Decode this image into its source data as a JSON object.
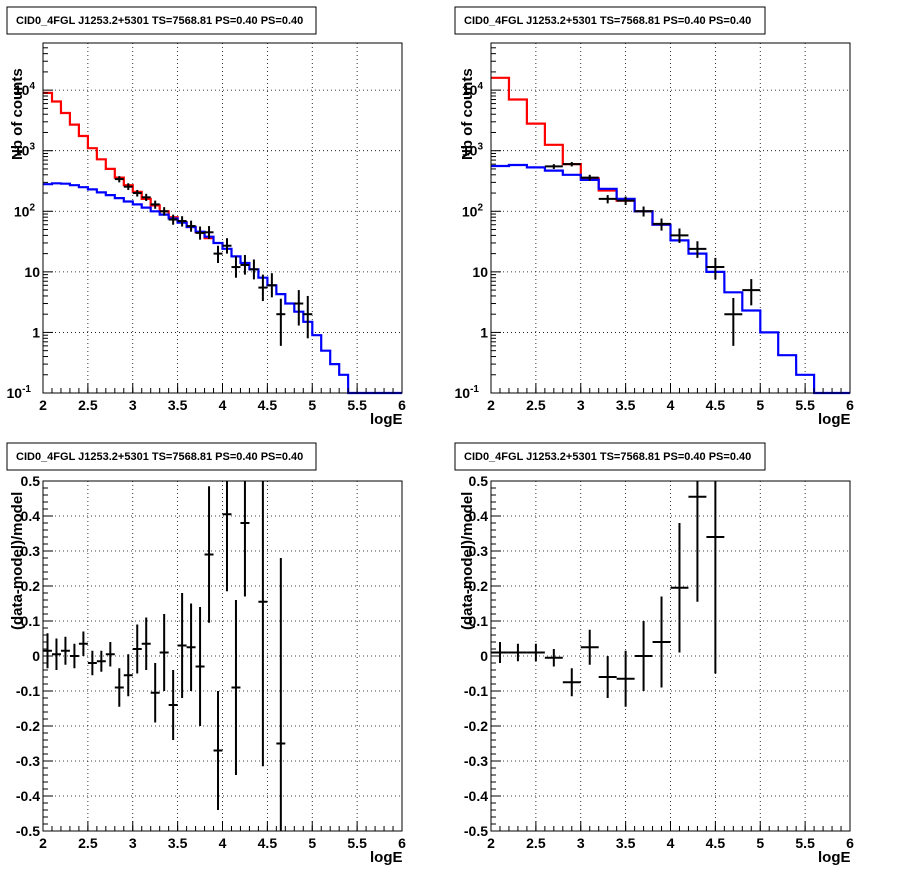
{
  "chart_data": [
    {
      "type": "line",
      "title": "CID0_4FGL J1253.2+5301 TS=7568.81 PS=0.40 PS=0.40",
      "xlabel": "logE",
      "ylabel": "Nb of counts",
      "xlim": [
        2,
        6
      ],
      "ylim": [
        0.1,
        60000
      ],
      "yscale": "log",
      "grid": true,
      "x_ticks": [
        "2",
        "2.5",
        "3",
        "3.5",
        "4",
        "4.5",
        "5",
        "5.5",
        "6"
      ],
      "y_ticks": [
        {
          "v": 0.1,
          "label": "10^-1"
        },
        {
          "v": 1,
          "label": "1"
        },
        {
          "v": 10,
          "label": "10"
        },
        {
          "v": 100,
          "label": "10^2"
        },
        {
          "v": 1000,
          "label": "10^3"
        },
        {
          "v": 10000,
          "label": "10^4"
        }
      ],
      "bin_width": 0.1,
      "series": [
        {
          "color": "#ff0000",
          "x": [
            2.05,
            2.15,
            2.25,
            2.35,
            2.45,
            2.55,
            2.65,
            2.75,
            2.85,
            2.95,
            3.05,
            3.15,
            3.25,
            3.35,
            3.45,
            3.55,
            3.65,
            3.75,
            3.85
          ],
          "values": [
            9000,
            6500,
            4200,
            2700,
            1750,
            1100,
            720,
            500,
            360,
            270,
            210,
            160,
            125,
            100,
            80,
            66,
            55,
            45,
            36
          ]
        },
        {
          "color": "#0000ff",
          "x": [
            2.05,
            2.15,
            2.25,
            2.35,
            2.45,
            2.55,
            2.65,
            2.75,
            2.85,
            2.95,
            3.05,
            3.15,
            3.25,
            3.35,
            3.45,
            3.55,
            3.65,
            3.75,
            3.85,
            3.95,
            4.05,
            4.15,
            4.25,
            4.35,
            4.45,
            4.55,
            4.65,
            4.75,
            4.85,
            4.95,
            5.05,
            5.15,
            5.25,
            5.35,
            5.45,
            5.55,
            5.65,
            5.75,
            5.85,
            5.95
          ],
          "values": [
            280,
            290,
            285,
            270,
            250,
            230,
            205,
            185,
            165,
            145,
            130,
            115,
            100,
            88,
            76,
            65,
            55,
            46,
            38,
            30,
            24,
            18,
            14,
            11,
            8,
            6,
            4.3,
            3,
            2.2,
            1.5,
            0.9,
            0.5,
            0.3,
            0.2,
            0.1,
            0.1,
            0.1,
            0.1,
            0.1,
            0.1
          ]
        }
      ],
      "points": [
        {
          "x": 2.85,
          "y": 340,
          "lo": 300,
          "hi": 380
        },
        {
          "x": 2.95,
          "y": 255,
          "lo": 225,
          "hi": 290
        },
        {
          "x": 3.05,
          "y": 200,
          "lo": 175,
          "hi": 225
        },
        {
          "x": 3.15,
          "y": 170,
          "lo": 148,
          "hi": 194
        },
        {
          "x": 3.25,
          "y": 130,
          "lo": 110,
          "hi": 150
        },
        {
          "x": 3.35,
          "y": 100,
          "lo": 85,
          "hi": 117
        },
        {
          "x": 3.45,
          "y": 73,
          "lo": 60,
          "hi": 88
        },
        {
          "x": 3.55,
          "y": 69,
          "lo": 56,
          "hi": 83
        },
        {
          "x": 3.65,
          "y": 57,
          "lo": 46,
          "hi": 70
        },
        {
          "x": 3.75,
          "y": 44,
          "lo": 34,
          "hi": 56
        },
        {
          "x": 3.85,
          "y": 45,
          "lo": 35,
          "hi": 57
        },
        {
          "x": 3.95,
          "y": 20,
          "lo": 14,
          "hi": 27
        },
        {
          "x": 4.05,
          "y": 27,
          "lo": 20,
          "hi": 36
        },
        {
          "x": 4.15,
          "y": 12,
          "lo": 8,
          "hi": 18
        },
        {
          "x": 4.25,
          "y": 13,
          "lo": 9,
          "hi": 19
        },
        {
          "x": 4.35,
          "y": 11,
          "lo": 7.5,
          "hi": 16
        },
        {
          "x": 4.45,
          "y": 5.5,
          "lo": 3.3,
          "hi": 9
        },
        {
          "x": 4.55,
          "y": 6,
          "lo": 3.8,
          "hi": 9.5
        },
        {
          "x": 4.65,
          "y": 2,
          "lo": 0.6,
          "hi": 3.6
        },
        {
          "x": 4.85,
          "y": 3,
          "lo": 1.3,
          "hi": 5
        },
        {
          "x": 4.95,
          "y": 2,
          "lo": 0.8,
          "hi": 4
        }
      ]
    },
    {
      "type": "line",
      "title": "CID0_4FGL J1253.2+5301 TS=7568.81 PS=0.40 PS=0.40",
      "xlabel": "logE",
      "ylabel": "Nb of counts",
      "xlim": [
        2,
        6
      ],
      "ylim": [
        0.1,
        60000
      ],
      "yscale": "log",
      "grid": true,
      "x_ticks": [
        "2",
        "2.5",
        "3",
        "3.5",
        "4",
        "4.5",
        "5",
        "5.5",
        "6"
      ],
      "y_ticks": [
        {
          "v": 0.1,
          "label": "10^-1"
        },
        {
          "v": 1,
          "label": "1"
        },
        {
          "v": 10,
          "label": "10"
        },
        {
          "v": 100,
          "label": "10^2"
        },
        {
          "v": 1000,
          "label": "10^3"
        },
        {
          "v": 10000,
          "label": "10^4"
        }
      ],
      "bin_width": 0.2,
      "series": [
        {
          "color": "#ff0000",
          "x": [
            2.1,
            2.3,
            2.5,
            2.7,
            2.9,
            3.1,
            3.3,
            3.5,
            3.7,
            3.9
          ],
          "values": [
            16000,
            7000,
            2800,
            1250,
            600,
            350,
            220,
            150,
            100,
            60
          ]
        },
        {
          "color": "#0000ff",
          "x": [
            2.1,
            2.3,
            2.5,
            2.7,
            2.9,
            3.1,
            3.3,
            3.5,
            3.7,
            3.9,
            4.1,
            4.3,
            4.5,
            4.7,
            4.9,
            5.1,
            5.3,
            5.5,
            5.7,
            5.9
          ],
          "values": [
            560,
            580,
            530,
            470,
            400,
            330,
            235,
            160,
            100,
            60,
            33,
            20,
            10,
            4.6,
            2.3,
            1,
            0.42,
            0.2,
            0.1,
            0.1
          ]
        }
      ],
      "points": [
        {
          "x": 2.7,
          "y": 550,
          "lo": 500,
          "hi": 600
        },
        {
          "x": 2.9,
          "y": 600,
          "lo": 550,
          "hi": 650
        },
        {
          "x": 3.1,
          "y": 360,
          "lo": 320,
          "hi": 400
        },
        {
          "x": 3.3,
          "y": 160,
          "lo": 135,
          "hi": 185
        },
        {
          "x": 3.5,
          "y": 150,
          "lo": 127,
          "hi": 175
        },
        {
          "x": 3.7,
          "y": 100,
          "lo": 82,
          "hi": 120
        },
        {
          "x": 3.9,
          "y": 62,
          "lo": 48,
          "hi": 76
        },
        {
          "x": 4.1,
          "y": 40,
          "lo": 30,
          "hi": 52
        },
        {
          "x": 4.3,
          "y": 24,
          "lo": 17,
          "hi": 32
        },
        {
          "x": 4.5,
          "y": 12,
          "lo": 7.5,
          "hi": 17
        },
        {
          "x": 4.7,
          "y": 2,
          "lo": 0.6,
          "hi": 3.7
        },
        {
          "x": 4.9,
          "y": 5,
          "lo": 2.8,
          "hi": 7.6
        }
      ]
    },
    {
      "type": "scatter",
      "title": "CID0_4FGL J1253.2+5301 TS=7568.81 PS=0.40 PS=0.40",
      "xlabel": "logE",
      "ylabel": "(data-model)/model",
      "xlim": [
        2,
        6
      ],
      "ylim": [
        -0.5,
        0.5
      ],
      "grid": true,
      "x_ticks": [
        "2",
        "2.5",
        "3",
        "3.5",
        "4",
        "4.5",
        "5",
        "5.5",
        "6"
      ],
      "y_ticks": [
        "-0.5",
        "-0.4",
        "-0.3",
        "-0.2",
        "-0.1",
        "0",
        "0.1",
        "0.2",
        "0.3",
        "0.4",
        "0.5"
      ],
      "bin_width": 0.1,
      "points": [
        {
          "x": 2.05,
          "y": 0.015,
          "err": 0.05
        },
        {
          "x": 2.15,
          "y": 0.005,
          "err": 0.045
        },
        {
          "x": 2.25,
          "y": 0.015,
          "err": 0.04
        },
        {
          "x": 2.35,
          "y": 0.0,
          "err": 0.035
        },
        {
          "x": 2.45,
          "y": 0.035,
          "err": 0.035
        },
        {
          "x": 2.55,
          "y": -0.02,
          "err": 0.035
        },
        {
          "x": 2.65,
          "y": -0.015,
          "err": 0.03
        },
        {
          "x": 2.75,
          "y": 0.005,
          "err": 0.035
        },
        {
          "x": 2.85,
          "y": -0.09,
          "err": 0.055
        },
        {
          "x": 2.95,
          "y": -0.055,
          "err": 0.06
        },
        {
          "x": 3.05,
          "y": 0.02,
          "err": 0.07
        },
        {
          "x": 3.15,
          "y": 0.035,
          "err": 0.075
        },
        {
          "x": 3.25,
          "y": -0.105,
          "err": 0.085
        },
        {
          "x": 3.35,
          "y": 0.01,
          "err": 0.11
        },
        {
          "x": 3.45,
          "y": -0.14,
          "err": 0.1
        },
        {
          "x": 3.55,
          "y": 0.03,
          "err": 0.15
        },
        {
          "x": 3.65,
          "y": 0.025,
          "err": 0.125
        },
        {
          "x": 3.75,
          "y": -0.03,
          "err": 0.17
        },
        {
          "x": 3.85,
          "y": 0.29,
          "err": 0.195
        },
        {
          "x": 3.95,
          "y": -0.27,
          "err": 0.17
        },
        {
          "x": 4.05,
          "y": 0.405,
          "err": 0.22
        },
        {
          "x": 4.15,
          "y": -0.09,
          "err": 0.25
        },
        {
          "x": 4.25,
          "y": 0.38,
          "err": 0.21
        },
        {
          "x": 4.45,
          "y": 0.155,
          "err": 0.47
        },
        {
          "x": 4.65,
          "y": -0.25,
          "err": 0.53
        }
      ]
    },
    {
      "type": "scatter",
      "title": "CID0_4FGL J1253.2+5301 TS=7568.81 PS=0.40 PS=0.40",
      "xlabel": "logE",
      "ylabel": "(data-model)/model",
      "xlim": [
        2,
        6
      ],
      "ylim": [
        -0.5,
        0.5
      ],
      "grid": true,
      "x_ticks": [
        "2",
        "2.5",
        "3",
        "3.5",
        "4",
        "4.5",
        "5",
        "5.5",
        "6"
      ],
      "y_ticks": [
        "-0.5",
        "-0.4",
        "-0.3",
        "-0.2",
        "-0.1",
        "0",
        "0.1",
        "0.2",
        "0.3",
        "0.4",
        "0.5"
      ],
      "bin_width": 0.2,
      "points": [
        {
          "x": 2.1,
          "y": 0.01,
          "err": 0.03
        },
        {
          "x": 2.3,
          "y": 0.01,
          "err": 0.025
        },
        {
          "x": 2.5,
          "y": 0.01,
          "err": 0.025
        },
        {
          "x": 2.7,
          "y": -0.005,
          "err": 0.025
        },
        {
          "x": 2.9,
          "y": -0.075,
          "err": 0.04
        },
        {
          "x": 3.1,
          "y": 0.025,
          "err": 0.05
        },
        {
          "x": 3.3,
          "y": -0.06,
          "err": 0.06
        },
        {
          "x": 3.5,
          "y": -0.065,
          "err": 0.08
        },
        {
          "x": 3.7,
          "y": 0.0,
          "err": 0.1
        },
        {
          "x": 3.9,
          "y": 0.04,
          "err": 0.13
        },
        {
          "x": 4.1,
          "y": 0.195,
          "err": 0.185
        },
        {
          "x": 4.3,
          "y": 0.455,
          "err": 0.3
        },
        {
          "x": 4.5,
          "y": 0.34,
          "err": 0.39
        }
      ]
    }
  ]
}
